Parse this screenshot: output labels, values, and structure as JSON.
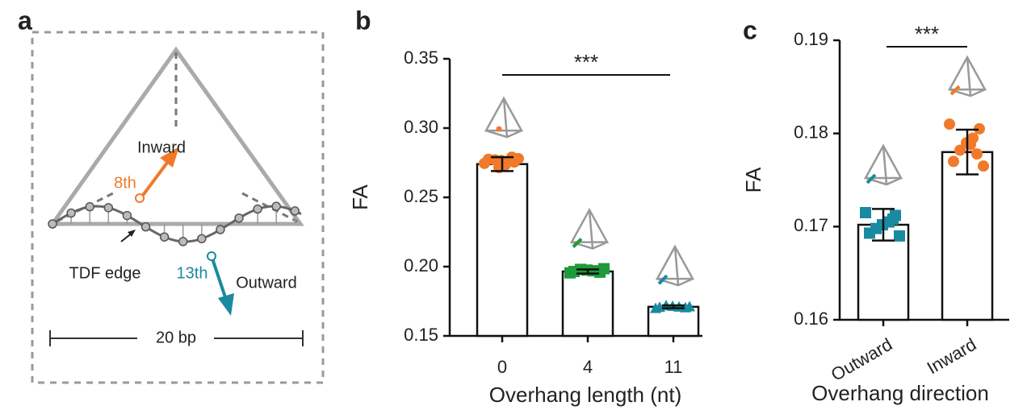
{
  "panel_labels": [
    "a",
    "b",
    "c"
  ],
  "diagram": {
    "labels": {
      "inward": "Inward",
      "eighth": "8th",
      "edge": "TDF edge",
      "thirteenth": "13th",
      "outward": "Outward",
      "scale": "20 bp"
    }
  },
  "chart_data": [
    {
      "type": "bar",
      "ylabel": "FA",
      "xlabel": "Overhang length (nt)",
      "annotation": "***",
      "categories": [
        "0",
        "4",
        "11"
      ],
      "values": [
        0.274,
        0.1965,
        0.171
      ],
      "errors": [
        0.005,
        0.0015,
        0.001
      ],
      "points": [
        [
          0.2745,
          0.2755,
          0.276,
          0.2765,
          0.277,
          0.2775,
          0.278,
          0.279,
          0.2735,
          0.2715
        ],
        [
          0.1955,
          0.196,
          0.197,
          0.1975,
          0.198,
          0.1965,
          0.1985
        ],
        [
          0.17,
          0.1705,
          0.171,
          0.1715,
          0.172,
          0.1708,
          0.1712
        ]
      ],
      "colors": [
        "#f07a2a",
        "#1e9a3a",
        "#1a8aa0"
      ],
      "markers": [
        "circle",
        "square",
        "triangle"
      ],
      "ylim": [
        0.15,
        0.35
      ],
      "yticks": [
        0.15,
        {
          "value": 0.2,
          "label": "0.20"
        },
        0.25,
        {
          "value": 0.3,
          "label": "0.30"
        },
        0.35
      ]
    },
    {
      "type": "bar",
      "ylabel": "FA",
      "xlabel": "Overhang direction",
      "annotation": "***",
      "categories": [
        "Outward",
        "Inward"
      ],
      "values": [
        0.1702,
        0.178
      ],
      "errors": [
        0.0017,
        0.0024
      ],
      "points": [
        [
          0.1715,
          0.1712,
          0.1705,
          0.1702,
          0.1698,
          0.1693,
          0.169,
          0.1708
        ],
        [
          0.181,
          0.1805,
          0.1795,
          0.179,
          0.1782,
          0.177,
          0.1765,
          0.1778,
          0.1788
        ]
      ],
      "colors": [
        "#1a8aa0",
        "#f07a2a"
      ],
      "markers": [
        "square",
        "circle"
      ],
      "ylim": [
        0.16,
        0.19
      ],
      "yticks": [
        0.16,
        0.17,
        0.18,
        0.19
      ]
    }
  ]
}
